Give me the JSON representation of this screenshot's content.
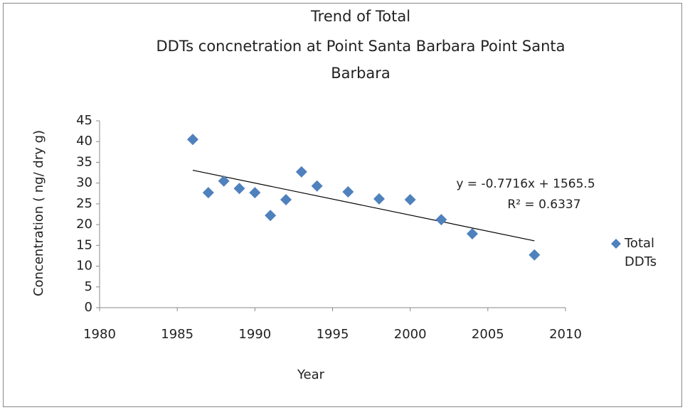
{
  "chart_data": {
    "type": "scatter",
    "title": [
      "Trend of Total",
      "DDTs concnetration at Point Santa Barbara Point Santa",
      "Barbara"
    ],
    "x_label": "Year",
    "y_label": "Concentration ( ng/ dry g)",
    "series": [
      {
        "name": "Total DDTs",
        "color": "#4f81bd",
        "x": [
          1986,
          1987,
          1988,
          1989,
          1990,
          1991,
          1992,
          1993,
          1994,
          1996,
          1998,
          2000,
          2002,
          2004,
          2008
        ],
        "values": [
          40.5,
          27.7,
          30.5,
          28.7,
          27.7,
          22.2,
          26,
          32.7,
          29.3,
          27.9,
          26.2,
          26,
          21.2,
          17.8,
          12.7
        ]
      }
    ],
    "trendline": {
      "x": [
        1986,
        2008
      ],
      "values": [
        33.1,
        16.1
      ],
      "color": "#000000"
    },
    "annotations": [
      "y = -0.7716x + 1565.5",
      "R² = 0.6337"
    ],
    "xlim": [
      1980,
      2010
    ],
    "xticks": [
      1980,
      1985,
      1990,
      1995,
      2000,
      2005,
      2010
    ],
    "ylim": [
      0,
      45
    ],
    "yticks": [
      0,
      5,
      10,
      15,
      20,
      25,
      30,
      35,
      40,
      45
    ],
    "legend": "right"
  }
}
